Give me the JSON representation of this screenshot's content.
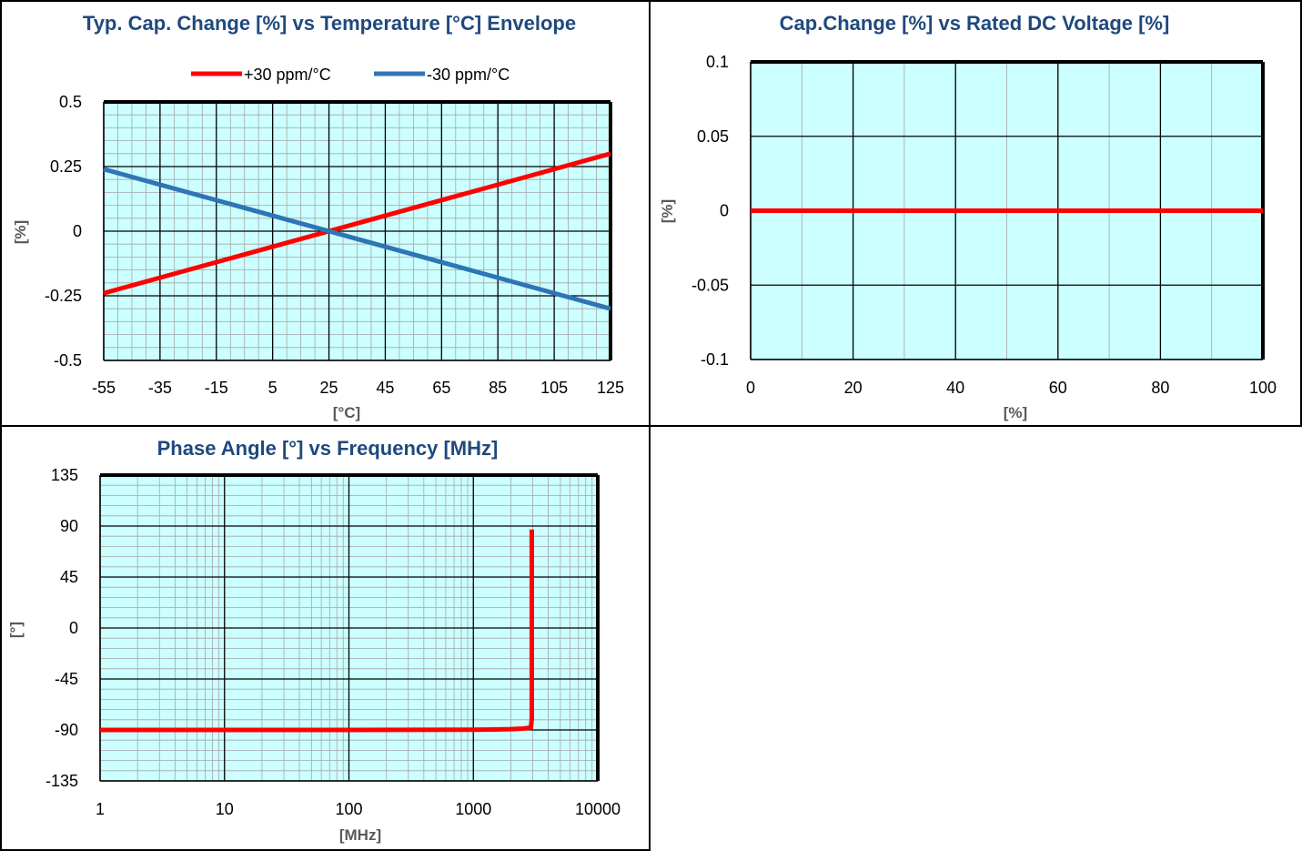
{
  "colors": {
    "title": "#1f497d",
    "plot_bg": "#ccffff",
    "major_grid": "#000000",
    "minor_grid": "#a6a6a6",
    "axis_label": "#595959",
    "frame": "#000000"
  },
  "chart_data": [
    {
      "type": "line",
      "title": "Typ. Cap. Change [%] vs Temperature [°C] Envelope",
      "xlabel": "[°C]",
      "ylabel": "[%]",
      "xlim": [
        -55,
        125
      ],
      "ylim": [
        -0.5,
        0.5
      ],
      "x_ticks": [
        -55,
        -35,
        -15,
        5,
        25,
        45,
        65,
        85,
        105,
        125
      ],
      "y_ticks": [
        -0.5,
        -0.25,
        0,
        0.25,
        0.5
      ],
      "x_tick_labels": [
        "-55",
        "-35",
        "-15",
        "5",
        "25",
        "45",
        "65",
        "85",
        "105",
        "125"
      ],
      "y_tick_labels": [
        "-0.5",
        "-0.25",
        "0",
        "0.25",
        "0.5"
      ],
      "grid": true,
      "legend": "top",
      "series": [
        {
          "name": "+30 ppm/°C",
          "color": "#ff0000",
          "x": [
            -55,
            125
          ],
          "y": [
            -0.24,
            0.3
          ]
        },
        {
          "name": "-30 ppm/°C",
          "color": "#2e75b6",
          "x": [
            -55,
            125
          ],
          "y": [
            0.24,
            -0.3
          ]
        }
      ]
    },
    {
      "type": "line",
      "title": "Cap.Change [%] vs Rated DC Voltage [%]",
      "xlabel": "[%]",
      "ylabel": "[%]",
      "xlim": [
        0,
        100
      ],
      "ylim": [
        -0.1,
        0.1
      ],
      "x_ticks": [
        0,
        20,
        40,
        60,
        80,
        100
      ],
      "y_ticks": [
        -0.1,
        -0.05,
        0,
        0.05,
        0.1
      ],
      "x_tick_labels": [
        "0",
        "20",
        "40",
        "60",
        "80",
        "100"
      ],
      "y_tick_labels": [
        "-0.1",
        "-0.05",
        "0",
        "0.05",
        "0.1"
      ],
      "grid": true,
      "series": [
        {
          "color": "#ff0000",
          "x": [
            0,
            100
          ],
          "y": [
            0,
            0
          ]
        }
      ]
    },
    {
      "type": "line",
      "title": "Phase Angle [°] vs Frequency [MHz]",
      "xlabel": "[MHz]",
      "ylabel": "[°]",
      "xscale": "log",
      "xlim": [
        1,
        10000
      ],
      "ylim": [
        -135,
        135
      ],
      "x_ticks": [
        1,
        10,
        100,
        1000,
        10000
      ],
      "y_ticks": [
        -135,
        -90,
        -45,
        0,
        45,
        90,
        135
      ],
      "x_tick_labels": [
        "1",
        "10",
        "100",
        "1000",
        "10000"
      ],
      "y_tick_labels": [
        "-135",
        "-90",
        "-45",
        "0",
        "45",
        "90",
        "135"
      ],
      "grid": true,
      "series": [
        {
          "color": "#ff0000",
          "x": [
            1,
            10,
            100,
            1000,
            1500,
            2000,
            2500,
            2900,
            2950,
            2950
          ],
          "y": [
            -90,
            -90,
            -90,
            -89.8,
            -89.6,
            -89.3,
            -88.8,
            -88,
            -80,
            87
          ]
        }
      ]
    }
  ]
}
